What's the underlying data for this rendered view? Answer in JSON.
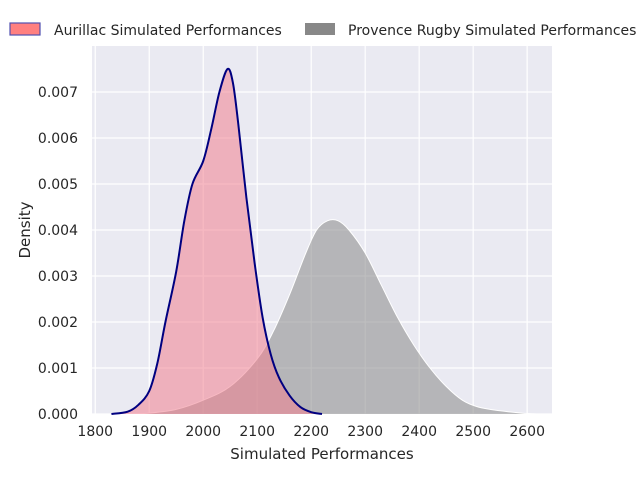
{
  "chart_data": {
    "type": "area",
    "title": "",
    "xlabel": "Simulated Performances",
    "ylabel": "Density",
    "xlim": [
      1794,
      2646
    ],
    "ylim": [
      0,
      0.008
    ],
    "xticks": [
      1800,
      1900,
      2000,
      2100,
      2200,
      2300,
      2400,
      2500,
      2600
    ],
    "yticks": [
      0.0,
      0.001,
      0.002,
      0.003,
      0.004,
      0.005,
      0.006,
      0.007
    ],
    "ytick_labels": [
      "0.000",
      "0.001",
      "0.002",
      "0.003",
      "0.004",
      "0.005",
      "0.006",
      "0.007"
    ],
    "grid": true,
    "legend_placement": "top-outside",
    "series": [
      {
        "name": "Aurillac Simulated Performances",
        "fill": "#f08090",
        "edge": "#000080",
        "x": [
          1830,
          1860,
          1880,
          1900,
          1915,
          1930,
          1950,
          1965,
          1980,
          2000,
          2015,
          2030,
          2045,
          2055,
          2065,
          2080,
          2095,
          2110,
          2125,
          2140,
          2160,
          2180,
          2200,
          2220
        ],
        "y": [
          0,
          5e-05,
          0.0002,
          0.0005,
          0.0011,
          0.002,
          0.0031,
          0.0042,
          0.005,
          0.0055,
          0.0062,
          0.007,
          0.0075,
          0.0072,
          0.0063,
          0.0047,
          0.0033,
          0.0021,
          0.0013,
          0.0008,
          0.0004,
          0.00015,
          4e-05,
          0
        ]
      },
      {
        "name": "Provence Rugby Simulated Performances",
        "fill": "#888888",
        "edge": "#ffffff",
        "x": [
          1860,
          1900,
          1950,
          2000,
          2050,
          2100,
          2130,
          2160,
          2190,
          2210,
          2230,
          2250,
          2270,
          2300,
          2330,
          2360,
          2390,
          2420,
          2450,
          2480,
          2510,
          2550,
          2590,
          2620
        ],
        "y": [
          0,
          2e-05,
          0.0001,
          0.0003,
          0.0006,
          0.0012,
          0.0018,
          0.0026,
          0.0035,
          0.004,
          0.0042,
          0.0042,
          0.004,
          0.0035,
          0.0028,
          0.0021,
          0.0015,
          0.001,
          0.0006,
          0.0003,
          0.00015,
          7e-05,
          2e-05,
          0
        ]
      }
    ]
  }
}
